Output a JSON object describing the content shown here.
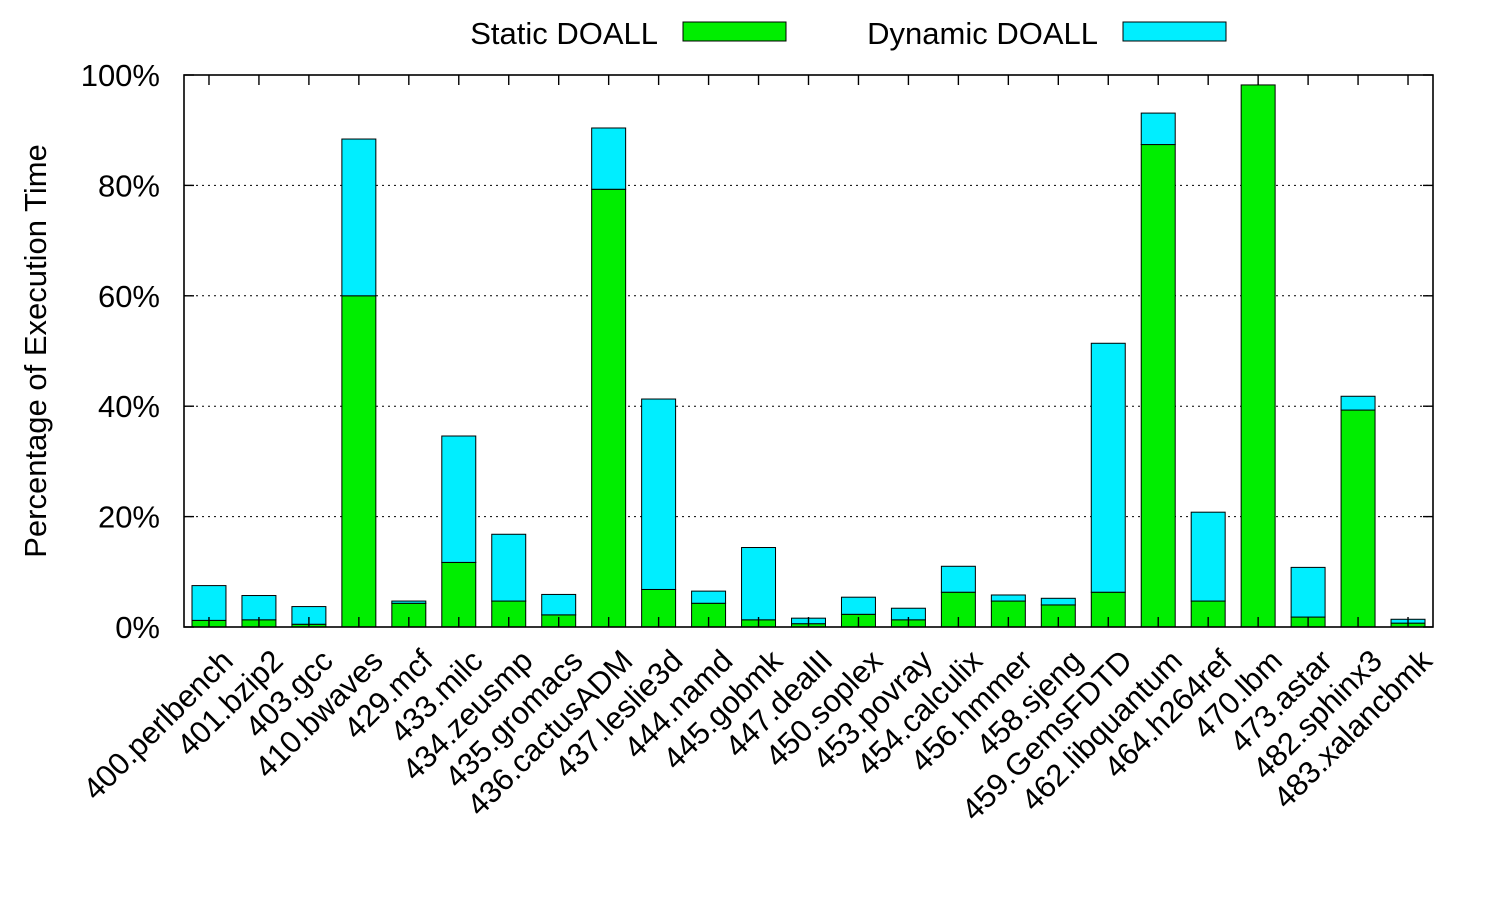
{
  "chart_data": {
    "type": "bar",
    "stacked": true,
    "ylabel": "Percentage of Execution Time",
    "ylim": [
      0,
      100
    ],
    "y_ticks": [
      "0%",
      "20%",
      "40%",
      "60%",
      "80%",
      "100%"
    ],
    "grid": "horizontal dotted",
    "legend_position": "top",
    "categories": [
      "400.perlbench",
      "401.bzip2",
      "403.gcc",
      "410.bwaves",
      "429.mcf",
      "433.milc",
      "434.zeusmp",
      "435.gromacs",
      "436.cactusADM",
      "437.leslie3d",
      "444.namd",
      "445.gobmk",
      "447.dealII",
      "450.soplex",
      "453.povray",
      "454.calculix",
      "456.hmmer",
      "458.sjeng",
      "459.GemsFDTD",
      "462.libquantum",
      "464.h264ref",
      "470.lbm",
      "473.astar",
      "482.sphinx3",
      "483.xalancbmk"
    ],
    "series": [
      {
        "name": "Static DOALL",
        "color": "#00ee00",
        "values": [
          1.2,
          1.3,
          0.5,
          60.0,
          4.3,
          11.7,
          4.7,
          2.2,
          79.3,
          6.8,
          4.3,
          1.3,
          0.6,
          2.3,
          1.3,
          6.3,
          4.7,
          4.0,
          6.3,
          87.4,
          4.7,
          98.2,
          1.8,
          39.3,
          0.7
        ]
      },
      {
        "name": "Dynamic DOALL",
        "color": "#00eeff",
        "values": [
          6.3,
          4.4,
          3.2,
          28.4,
          0.4,
          22.9,
          12.1,
          3.7,
          11.1,
          34.5,
          2.2,
          13.1,
          1.0,
          3.1,
          2.1,
          4.7,
          1.1,
          1.2,
          45.1,
          5.7,
          16.1,
          0.0,
          9.0,
          2.5,
          0.7
        ]
      }
    ]
  }
}
